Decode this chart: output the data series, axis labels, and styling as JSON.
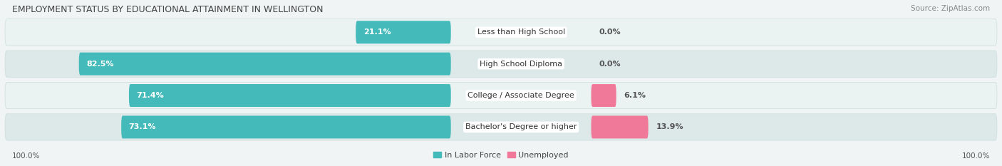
{
  "title": "EMPLOYMENT STATUS BY EDUCATIONAL ATTAINMENT IN WELLINGTON",
  "source": "Source: ZipAtlas.com",
  "categories": [
    "Less than High School",
    "High School Diploma",
    "College / Associate Degree",
    "Bachelor's Degree or higher"
  ],
  "in_labor_force": [
    21.1,
    82.5,
    71.4,
    73.1
  ],
  "unemployed": [
    0.0,
    0.0,
    6.1,
    13.9
  ],
  "labor_color": "#45baba",
  "unemployed_color": "#f07898",
  "row_bg_even": "#eaf2f2",
  "row_bg_odd": "#dde8e8",
  "axis_left_label": "100.0%",
  "axis_right_label": "100.0%",
  "max_val": 100.0,
  "figsize": [
    14.06,
    2.33
  ],
  "dpi": 100,
  "title_fontsize": 9.0,
  "source_fontsize": 7.5,
  "bar_label_fontsize": 8.0,
  "cat_label_fontsize": 8.0,
  "axis_label_fontsize": 7.5,
  "legend_fontsize": 8.0
}
